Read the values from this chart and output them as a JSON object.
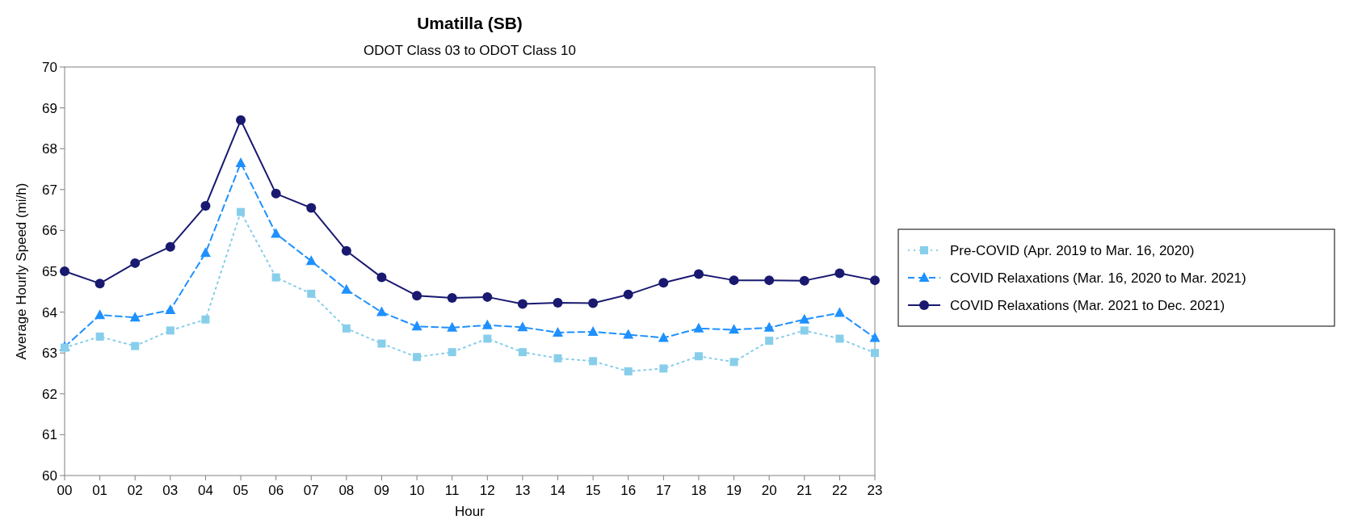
{
  "chart_data": {
    "type": "line",
    "title": "Umatilla (SB)",
    "subtitle": "ODOT Class 03 to ODOT Class 10",
    "xlabel": "Hour",
    "ylabel": "Average Hourly Speed (mi/h)",
    "categories": [
      "00",
      "01",
      "02",
      "03",
      "04",
      "05",
      "06",
      "07",
      "08",
      "09",
      "10",
      "11",
      "12",
      "13",
      "14",
      "15",
      "16",
      "17",
      "18",
      "19",
      "20",
      "21",
      "22",
      "23"
    ],
    "ylim": [
      60,
      70
    ],
    "yticks": [
      60,
      61,
      62,
      63,
      64,
      65,
      66,
      67,
      68,
      69,
      70
    ],
    "grid": false,
    "legend": "right",
    "series": [
      {
        "name": "Pre-COVID (Apr. 2019 to Mar. 16, 2020)",
        "color": "#87ceeb",
        "marker": "square",
        "line_style": "dotted",
        "values": [
          63.13,
          63.4,
          63.17,
          63.55,
          63.82,
          66.45,
          64.85,
          64.45,
          63.6,
          63.23,
          62.9,
          63.02,
          63.35,
          63.02,
          62.87,
          62.8,
          62.55,
          62.62,
          62.92,
          62.78,
          63.3,
          63.55,
          63.35,
          63.0
        ]
      },
      {
        "name": "COVID Relaxations (Mar. 16, 2020 to Mar. 2021)",
        "color": "#1e90ff",
        "marker": "triangle",
        "line_style": "dashed",
        "values": [
          63.15,
          63.93,
          63.87,
          64.05,
          65.45,
          67.65,
          65.92,
          65.25,
          64.55,
          64.0,
          63.65,
          63.62,
          63.68,
          63.63,
          63.5,
          63.52,
          63.45,
          63.37,
          63.6,
          63.57,
          63.62,
          63.82,
          63.98,
          63.37
        ]
      },
      {
        "name": "COVID Relaxations (Mar. 2021 to Dec. 2021)",
        "color": "#191970",
        "marker": "circle",
        "line_style": "solid",
        "values": [
          65.0,
          64.7,
          65.2,
          65.6,
          66.6,
          68.7,
          66.9,
          66.55,
          65.5,
          64.85,
          64.4,
          64.35,
          64.37,
          64.2,
          64.23,
          64.22,
          64.43,
          64.72,
          64.93,
          64.78,
          64.78,
          64.77,
          64.95,
          64.78
        ]
      }
    ]
  }
}
